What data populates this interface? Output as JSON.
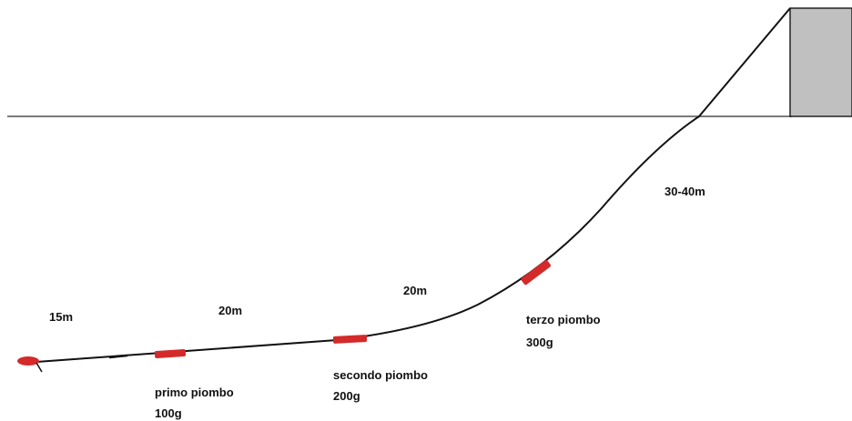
{
  "colors": {
    "background": "#ffffff",
    "water_surface": "#7a7a7a",
    "line": "#111111",
    "sinker": "#d42a2a",
    "boat": "#c0c0c0",
    "boat_outline": "#222222"
  },
  "segments": {
    "seg1": "15m",
    "seg2": "20m",
    "seg3": "20m",
    "seg4": "30-40m"
  },
  "weights": {
    "primo": {
      "name": "primo piombo",
      "weight": "100g"
    },
    "secondo": {
      "name": "secondo piombo",
      "weight": "200g"
    },
    "terzo": {
      "name": "terzo piombo",
      "weight": "300g"
    }
  }
}
